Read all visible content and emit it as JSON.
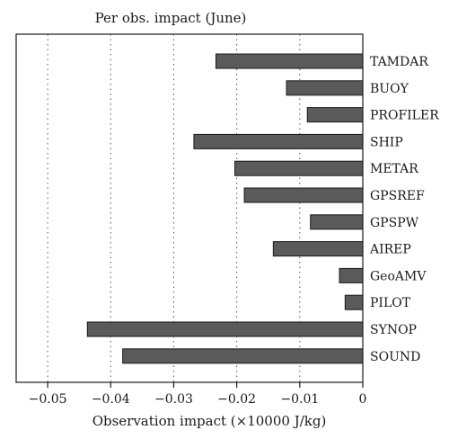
{
  "chart_data": {
    "type": "bar",
    "orientation": "horizontal",
    "title": "Per obs. impact (June)",
    "xlabel": "Observation impact (×10000 J/kg)",
    "ylabel": "",
    "categories": [
      "TAMDAR",
      "BUOY",
      "PROFILER",
      "SHIP",
      "METAR",
      "GPSREF",
      "GPSPW",
      "AIREP",
      "GeoAMV",
      "PILOT",
      "SYNOP",
      "SOUND"
    ],
    "values": [
      -0.0233,
      -0.0121,
      -0.0088,
      -0.0268,
      -0.0203,
      -0.0188,
      -0.0083,
      -0.0142,
      -0.0037,
      -0.0028,
      -0.0437,
      -0.0381
    ],
    "xlim": [
      -0.055,
      0
    ],
    "xticks": [
      -0.05,
      -0.04,
      -0.03,
      -0.02,
      -0.01,
      0
    ],
    "xtick_labels": [
      "−0.05",
      "−0.04",
      "−0.03",
      "−0.02",
      "−0.01",
      "0"
    ],
    "grid": "vertical-dotted",
    "legend": "none",
    "bar_color": "#5a5a5a",
    "bar_edge_color": "#1a1a1a"
  }
}
